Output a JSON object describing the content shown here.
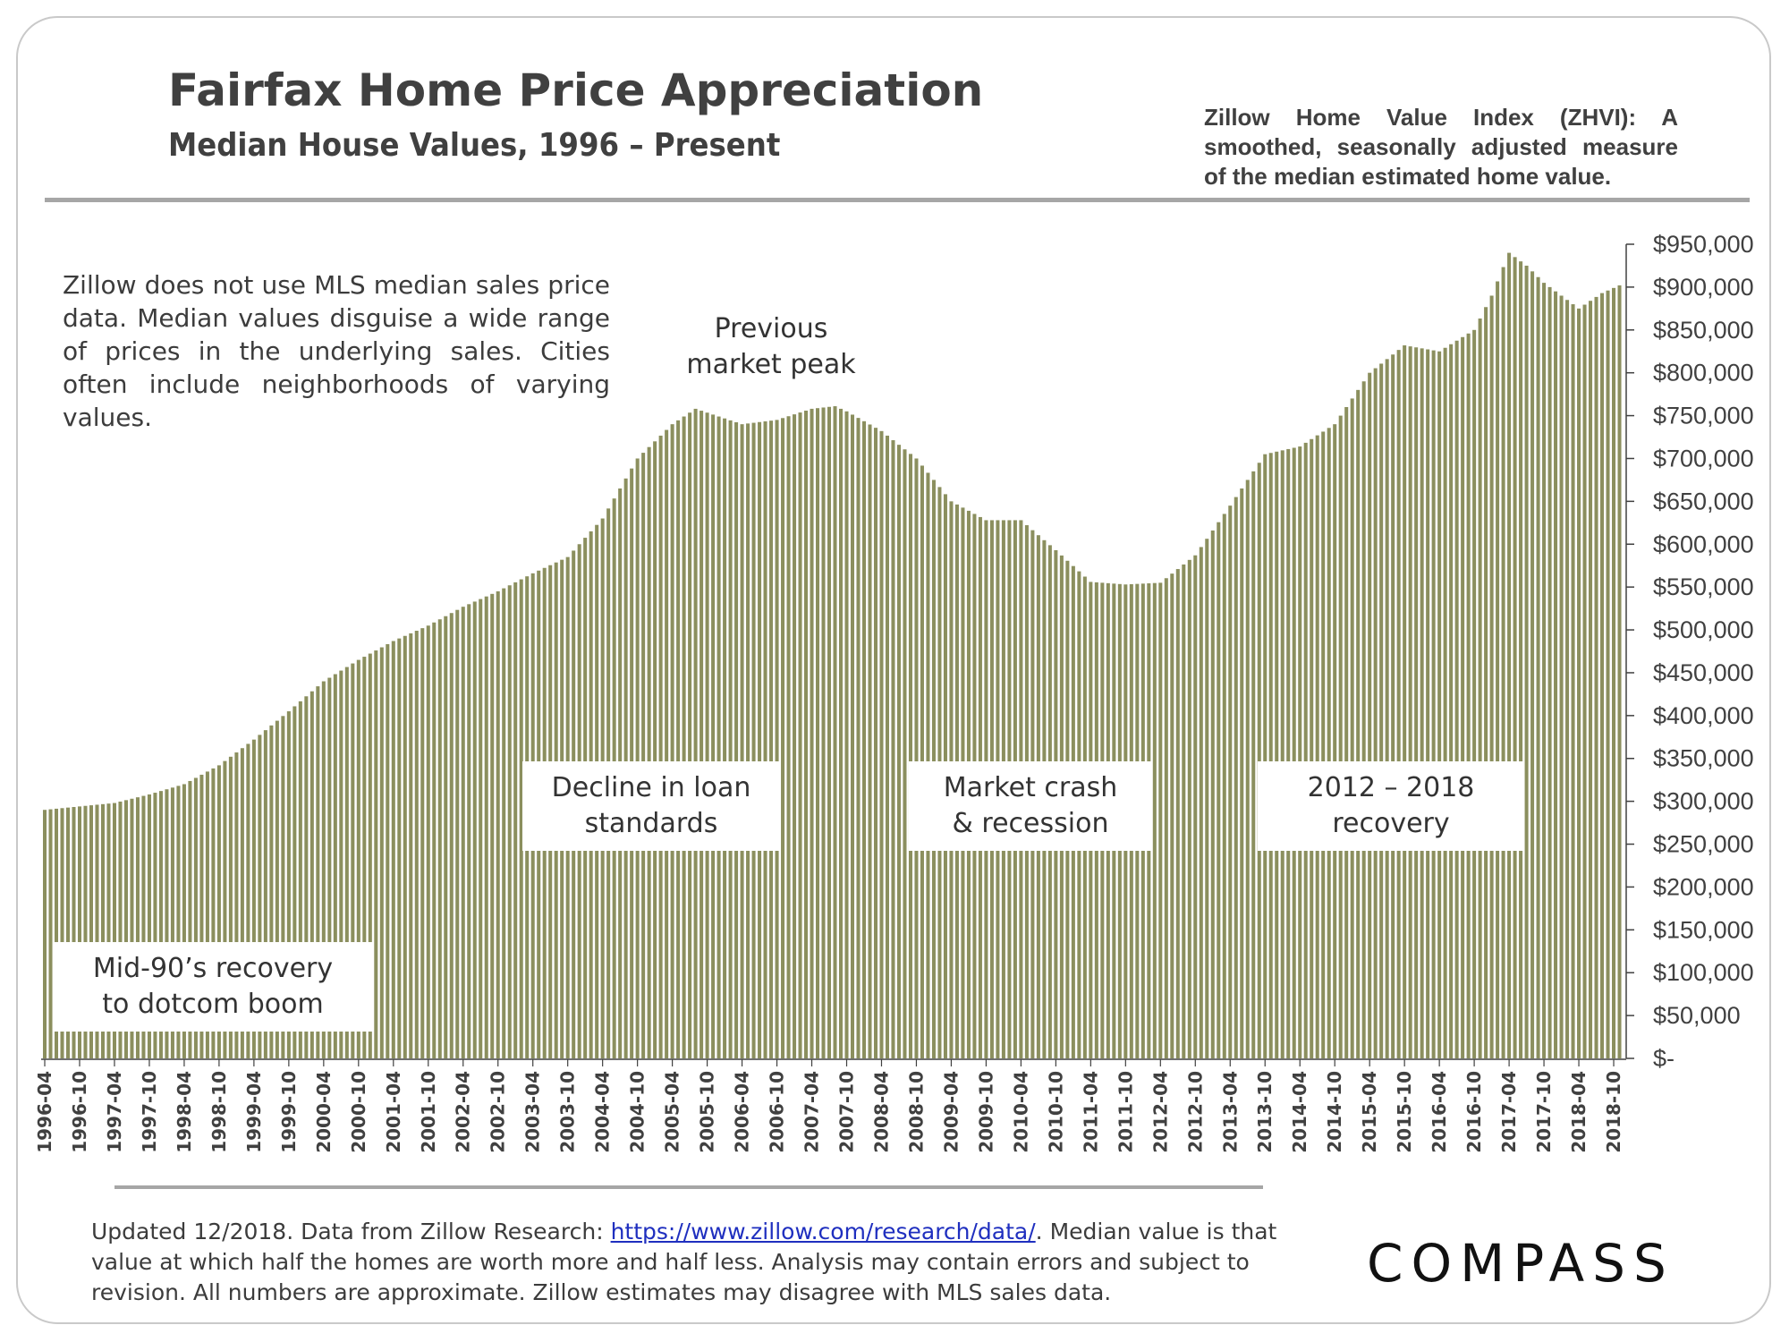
{
  "header": {
    "title": "Fairfax Home Price Appreciation",
    "subtitle": "Median House Values, 1996 – Present",
    "zhvi_note": "Zillow Home Value Index (ZHVI): A smoothed, seasonally adjusted measure of the median estimated home value."
  },
  "annotations": {
    "note": "Zillow does not use MLS median sales price data. Median values disguise a wide range of prices in the underlying sales. Cities often include neighborhoods of varying values.",
    "peak_line1": "Previous",
    "peak_line2": "market peak",
    "callout_dotcom_1": "Mid-90’s recovery",
    "callout_dotcom_2": "to dotcom boom",
    "callout_loan_1": "Decline in loan",
    "callout_loan_2": "standards",
    "callout_crash_1": "Market crash",
    "callout_crash_2": "& recession",
    "callout_recovery_1": "2012 – 2018",
    "callout_recovery_2": "recovery"
  },
  "footer": {
    "prefix": "Updated 12/2018. Data from Zillow Research: ",
    "link": "https://www.zillow.com/research/data/",
    "suffix": ". Median value is that value at which half the homes are worth more and half less. Analysis may contain errors and subject to revision. All numbers are approximate. Zillow estimates may disagree with MLS sales data."
  },
  "logo": {
    "text": "COMPASS"
  },
  "colors": {
    "bar": "#8b8f5e",
    "gap": "#ffffff",
    "axis": "#404040"
  },
  "chart_data": {
    "type": "bar",
    "title": "Fairfax Home Price Appreciation",
    "xlabel": "",
    "ylabel": "",
    "ylim": [
      0,
      950000
    ],
    "yticks": [
      0,
      50000,
      100000,
      150000,
      200000,
      250000,
      300000,
      350000,
      400000,
      450000,
      500000,
      550000,
      600000,
      650000,
      700000,
      750000,
      800000,
      850000,
      900000,
      950000
    ],
    "ytick_labels": [
      "$-",
      "$50,000",
      "$100,000",
      "$150,000",
      "$200,000",
      "$250,000",
      "$300,000",
      "$350,000",
      "$400,000",
      "$450,000",
      "$500,000",
      "$550,000",
      "$600,000",
      "$650,000",
      "$700,000",
      "$750,000",
      "$800,000",
      "$850,000",
      "$900,000",
      "$950,000"
    ],
    "xtick_labels": [
      "1996-04",
      "1996-10",
      "1997-04",
      "1997-10",
      "1998-04",
      "1998-10",
      "1999-04",
      "1999-10",
      "2000-04",
      "2000-10",
      "2001-04",
      "2001-10",
      "2002-04",
      "2002-10",
      "2003-04",
      "2003-10",
      "2004-04",
      "2004-10",
      "2005-04",
      "2005-10",
      "2006-04",
      "2006-10",
      "2007-04",
      "2007-10",
      "2008-04",
      "2008-10",
      "2009-04",
      "2009-10",
      "2010-04",
      "2010-10",
      "2011-04",
      "2011-10",
      "2012-04",
      "2012-10",
      "2013-04",
      "2013-10",
      "2014-04",
      "2014-10",
      "2015-04",
      "2015-10",
      "2016-04",
      "2016-10",
      "2017-04",
      "2017-10",
      "2018-04",
      "2018-10"
    ],
    "start_month": "1996-04",
    "end_month": "2018-11",
    "anchors": [
      [
        "1996-04",
        290000
      ],
      [
        "1997-04",
        298000
      ],
      [
        "1997-10",
        308000
      ],
      [
        "1998-04",
        320000
      ],
      [
        "1998-10",
        342000
      ],
      [
        "1999-04",
        372000
      ],
      [
        "1999-10",
        405000
      ],
      [
        "2000-04",
        440000
      ],
      [
        "2000-10",
        465000
      ],
      [
        "2001-04",
        487000
      ],
      [
        "2001-10",
        505000
      ],
      [
        "2002-04",
        527000
      ],
      [
        "2002-10",
        545000
      ],
      [
        "2003-04",
        566000
      ],
      [
        "2003-10",
        585000
      ],
      [
        "2004-04",
        630000
      ],
      [
        "2004-10",
        700000
      ],
      [
        "2005-04",
        740000
      ],
      [
        "2005-08",
        758000
      ],
      [
        "2006-04",
        740000
      ],
      [
        "2006-10",
        745000
      ],
      [
        "2007-04",
        758000
      ],
      [
        "2007-08",
        761000
      ],
      [
        "2007-10",
        755000
      ],
      [
        "2008-04",
        732000
      ],
      [
        "2008-10",
        700000
      ],
      [
        "2009-04",
        650000
      ],
      [
        "2009-10",
        628000
      ],
      [
        "2010-04",
        628000
      ],
      [
        "2010-10",
        593000
      ],
      [
        "2011-04",
        556000
      ],
      [
        "2011-10",
        553000
      ],
      [
        "2012-04",
        555000
      ],
      [
        "2012-10",
        587000
      ],
      [
        "2013-04",
        645000
      ],
      [
        "2013-10",
        705000
      ],
      [
        "2014-04",
        714000
      ],
      [
        "2014-10",
        740000
      ],
      [
        "2015-04",
        800000
      ],
      [
        "2015-10",
        832000
      ],
      [
        "2016-04",
        825000
      ],
      [
        "2016-10",
        850000
      ],
      [
        "2017-01",
        890000
      ],
      [
        "2017-04",
        940000
      ],
      [
        "2017-07",
        925000
      ],
      [
        "2017-10",
        905000
      ],
      [
        "2018-04",
        875000
      ],
      [
        "2018-08",
        893000
      ],
      [
        "2018-11",
        902000
      ]
    ]
  }
}
